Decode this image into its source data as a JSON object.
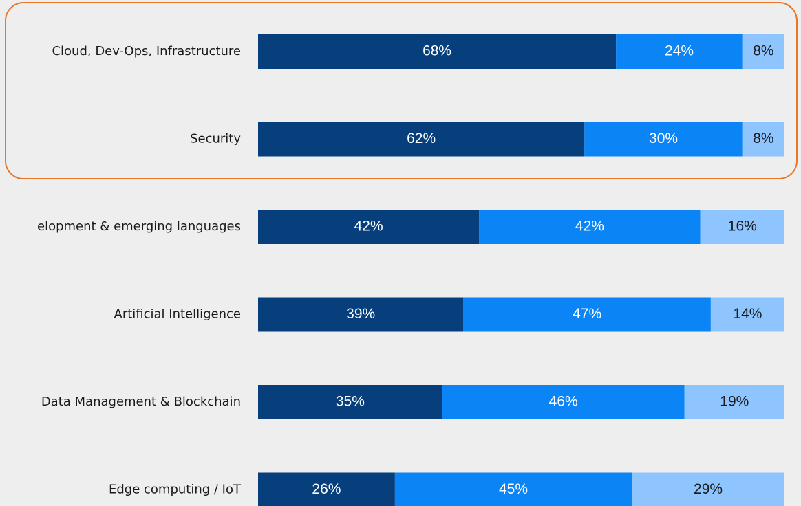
{
  "chart_data": {
    "type": "stacked-barh",
    "categories": [
      "Cloud, Dev-Ops, Infrastructure",
      "Security",
      "elopment & emerging languages",
      "Artificial Intelligence",
      "Data Management & Blockchain",
      "Edge computing / IoT"
    ],
    "series": [
      {
        "color": "#063f7c",
        "values": [
          68,
          62,
          42,
          39,
          35,
          26
        ],
        "value_labels": [
          "68%",
          "62%",
          "42%",
          "39%",
          "35%",
          "26%"
        ]
      },
      {
        "color": "#0b84f5",
        "values": [
          24,
          30,
          42,
          47,
          46,
          45
        ],
        "value_labels": [
          "24%",
          "30%",
          "42%",
          "47%",
          "46%",
          "45%"
        ]
      },
      {
        "color": "#8ec5ff",
        "values": [
          8,
          8,
          16,
          14,
          19,
          29
        ],
        "value_labels": [
          "8%",
          "8%",
          "16%",
          "14%",
          "19%",
          "29%"
        ]
      }
    ],
    "xlim": [
      0,
      100
    ]
  }
}
